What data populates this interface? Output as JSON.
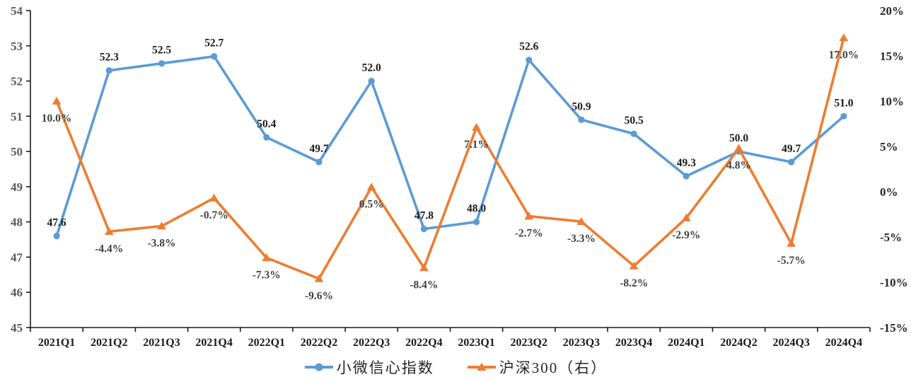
{
  "page": {
    "background": "#ffffff"
  },
  "colors": {
    "series_blue": "#5B9BD5",
    "series_orange": "#ED7D31",
    "axis_line": "#1a1a1a",
    "left_tick_text": "#595959",
    "right_tick_text": "#262626"
  },
  "legend": {
    "position": "bottom",
    "items": [
      {
        "label": "小微信心指数",
        "color": "#5B9BD5",
        "marker": "circle"
      },
      {
        "label": "沪深300（右）",
        "color": "#ED7D31",
        "marker": "triangle"
      }
    ]
  },
  "chart_data": {
    "type": "line",
    "title": "",
    "xlabel": "",
    "ylabel": "",
    "grid": false,
    "legend_position": "bottom",
    "categories": [
      "2021Q1",
      "2021Q2",
      "2021Q3",
      "2021Q4",
      "2022Q1",
      "2022Q2",
      "2022Q3",
      "2022Q4",
      "2023Q1",
      "2023Q2",
      "2023Q3",
      "2023Q4",
      "2024Q1",
      "2024Q2",
      "2024Q3",
      "2024Q4"
    ],
    "series": [
      {
        "name": "小微信心指数",
        "axis": "left",
        "color": "#5B9BD5",
        "marker": "circle",
        "label_position": "above",
        "label_color": "#1a1a1a",
        "values": [
          47.6,
          52.3,
          52.5,
          52.7,
          50.4,
          49.7,
          52.0,
          47.8,
          48.0,
          52.6,
          50.9,
          50.5,
          49.3,
          50.0,
          49.7,
          51.0
        ],
        "labels": [
          "47.6",
          "52.3",
          "52.5",
          "52.7",
          "50.4",
          "49.7",
          "52.0",
          "47.8",
          "48.0",
          "52.6",
          "50.9",
          "50.5",
          "49.3",
          "50.0",
          "49.7",
          "51.0"
        ]
      },
      {
        "name": "沪深300（右）",
        "axis": "right",
        "color": "#ED7D31",
        "marker": "triangle",
        "label_position": "below",
        "label_color": "#404040",
        "values": [
          10.0,
          -4.4,
          -3.8,
          -0.7,
          -7.3,
          -9.6,
          0.5,
          -8.4,
          7.1,
          -2.7,
          -3.3,
          -8.2,
          -2.9,
          4.8,
          -5.7,
          17.0
        ],
        "labels": [
          "10.0%",
          "-4.4%",
          "-3.8%",
          "-0.7%",
          "-7.3%",
          "-9.6%",
          "0.5%",
          "-8.4%",
          "7.1%",
          "-2.7%",
          "-3.3%",
          "-8.2%",
          "-2.9%",
          "4.8%",
          "-5.7%",
          "17.0%"
        ]
      }
    ],
    "axis_left": {
      "min": 45,
      "max": 54,
      "step": 1,
      "ticks": [
        "45",
        "46",
        "47",
        "48",
        "49",
        "50",
        "51",
        "52",
        "53",
        "54"
      ]
    },
    "axis_right": {
      "min": -15,
      "max": 20,
      "step": 5,
      "ticks": [
        "-15%",
        "-10%",
        "-5%",
        "0%",
        "5%",
        "10%",
        "15%",
        "20%"
      ]
    }
  }
}
